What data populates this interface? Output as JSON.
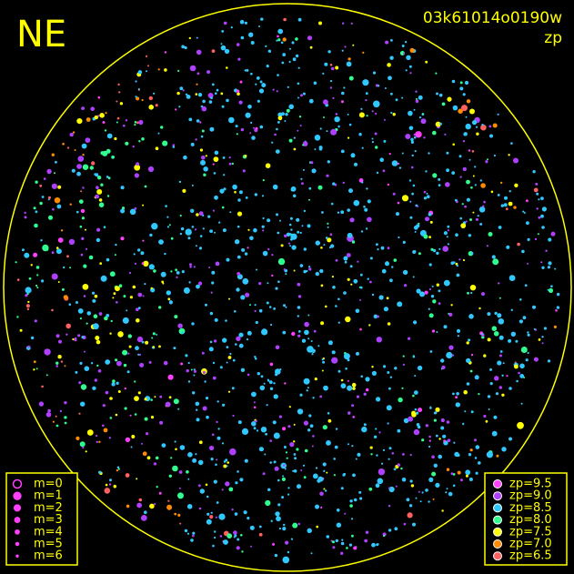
{
  "header": {
    "title": "NE",
    "image_id": "03k61014o0190w",
    "subtitle": "zp"
  },
  "magnitude_legend": [
    {
      "label": "m=0"
    },
    {
      "label": "m=1"
    },
    {
      "label": "m=2"
    },
    {
      "label": "m=3"
    },
    {
      "label": "m=4"
    },
    {
      "label": "m=5"
    },
    {
      "label": "m=6"
    }
  ],
  "zp_legend": [
    {
      "label": "zp=9.5",
      "color": "#ff40ff"
    },
    {
      "label": "zp=9.0",
      "color": "#b040ff"
    },
    {
      "label": "zp=8.5",
      "color": "#30c8ff"
    },
    {
      "label": "zp=8.0",
      "color": "#30ff90"
    },
    {
      "label": "zp=7.5",
      "color": "#ffff00"
    },
    {
      "label": "zp=7.0",
      "color": "#ff8c00"
    },
    {
      "label": "zp=6.5",
      "color": "#ff6060"
    }
  ],
  "horizon_color": "#ffff00",
  "marker_color": "#ff40ff"
}
